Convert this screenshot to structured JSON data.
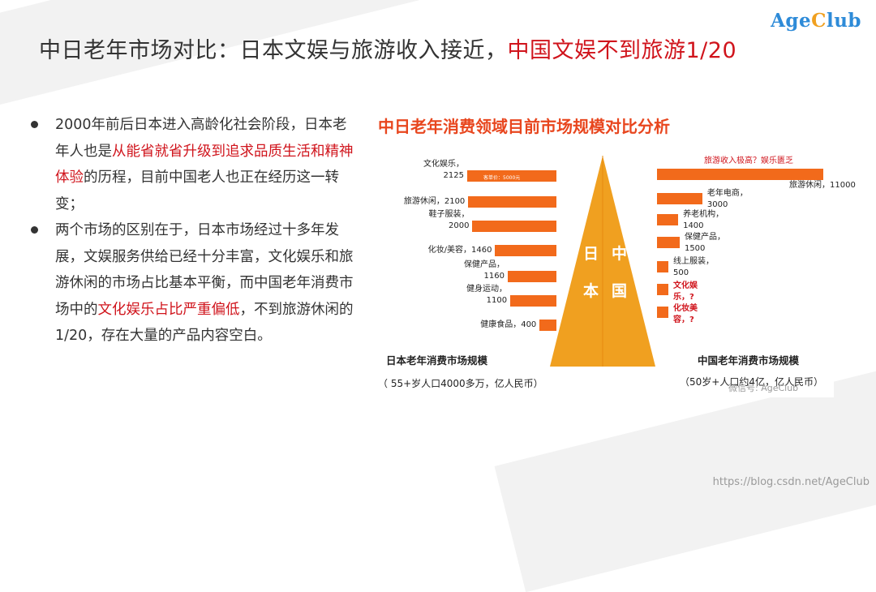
{
  "title": {
    "prefix": "中日老年市场对比：日本文娱与旅游收入接近，",
    "highlight": "中国文娱不到旅游1/20"
  },
  "logo": {
    "part1": "Age",
    "part2": "C",
    "part3": "lub"
  },
  "bullets": [
    {
      "t1": "2000年前后日本进入高龄化社会阶段，",
      "t2": "日本老年人也是",
      "red1": "从能省就省升级到追求品质生活和精神体验",
      "t3": "的历程，目前中国老人也正在经历这一转变；"
    },
    {
      "t1": "两个市场的区别在于，日本市场经过十多年发展，文娱服务供给已经十分丰富，文化娱乐和旅游休闲的市场占比基本平衡，而中国老年消费市场中的",
      "red1": "文化娱乐占比严重偏低",
      "t2": "，不到旅游休闲的1/20，存在大量的产品内容空白。"
    }
  ],
  "chart": {
    "title": "中日老年消费领域目前市场规模对比分析",
    "triangle_left": [
      "日",
      "本"
    ],
    "triangle_right": [
      "中",
      "国"
    ],
    "annotation": "客单价：5000元",
    "japan_footer_1": "日本老年消费市场规模",
    "japan_footer_2": "（ 55+岁人口4000多万，亿人民币）",
    "china_footer_1": "中国老年消费市场规模",
    "china_footer_2": "（50岁+人口约4亿，亿人民币）",
    "china_question": "旅游收入极高？娱乐匮乏",
    "watermark": "微信号: AgeClub"
  },
  "chart_data": {
    "type": "bar",
    "japan": {
      "categories": [
        "文化娱乐",
        "旅游休闲",
        "鞋子服装",
        "化妆/美容",
        "保健产品",
        "健身运动",
        "健康食品"
      ],
      "labels": [
        "文化娱乐，\n2125",
        "旅游休闲，2100",
        "鞋子服装，\n2000",
        "化妆/美容，1460",
        "保健产品，\n1160",
        "健身运动，\n1100",
        "健康食品，400"
      ],
      "values": [
        2125,
        2100,
        2000,
        1460,
        1160,
        1100,
        400
      ]
    },
    "china": {
      "categories": [
        "旅游休闲",
        "老年电商",
        "养老机构",
        "保健产品",
        "线上服装",
        "文化娱乐",
        "化妆美容"
      ],
      "labels": [
        "旅游休闲，11000",
        "老年电商，\n3000",
        "养老机构，\n1400",
        "保健产品，\n1500",
        "线上服装，\n500",
        "文化娱\n乐，?",
        "化妆美\n容，?"
      ],
      "values": [
        11000,
        3000,
        1400,
        1500,
        500,
        null,
        null
      ]
    }
  },
  "footer": {
    "url": "https://blog.csdn.net/AgeClub"
  },
  "colors": {
    "accent_red": "#d0141c",
    "bar_orange": "#f26a1b",
    "triangle": "#f0a020",
    "logo_blue": "#2e8bd8"
  }
}
